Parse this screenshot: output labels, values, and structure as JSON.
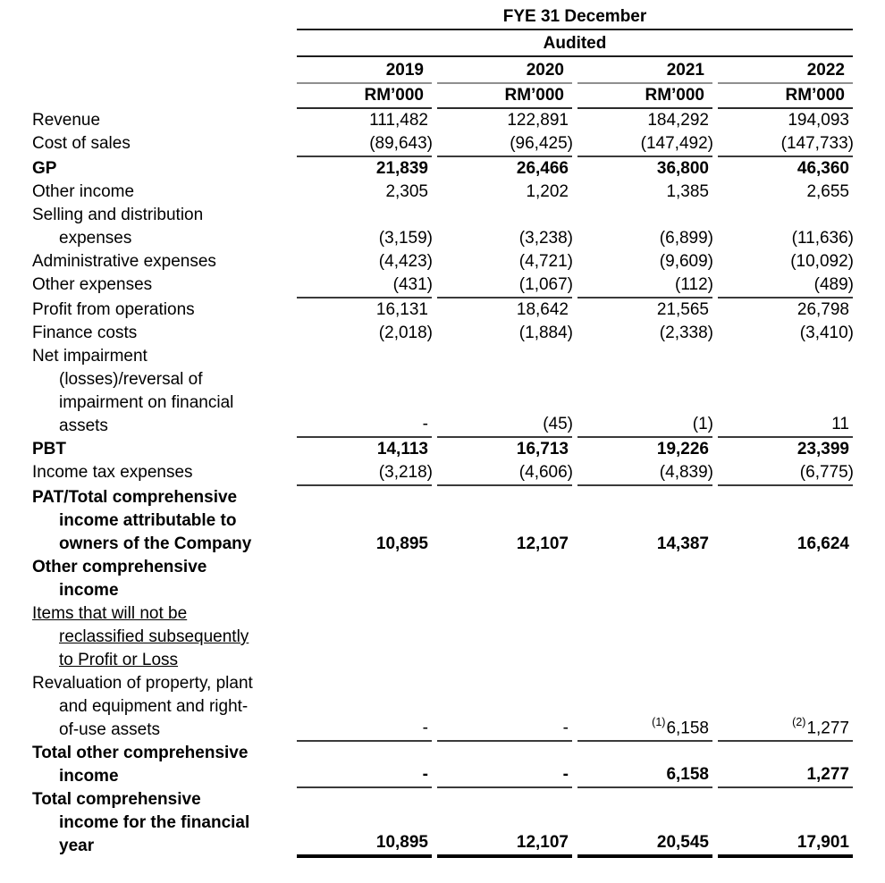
{
  "header": {
    "title": "FYE 31 December",
    "subtitle": "Audited",
    "years": [
      "2019",
      "2020",
      "2021",
      "2022"
    ],
    "unit": "RM’000"
  },
  "table": {
    "rows": [
      {
        "label": "Revenue",
        "values": [
          "111,482",
          "122,891",
          "184,292",
          "194,093"
        ]
      },
      {
        "label": "Cost of sales",
        "values": [
          "(89,643)",
          "(96,425)",
          "(147,492)",
          "(147,733)"
        ],
        "rule_after": true
      },
      {
        "label": "GP",
        "bold": true,
        "values": [
          "21,839",
          "26,466",
          "36,800",
          "46,360"
        ]
      },
      {
        "label": "Other income",
        "values": [
          "2,305",
          "1,202",
          "1,385",
          "2,655"
        ]
      },
      {
        "label": "Selling and distribution\nexpenses",
        "values": [
          "(3,159)",
          "(3,238)",
          "(6,899)",
          "(11,636)"
        ]
      },
      {
        "label": "Administrative expenses",
        "values": [
          "(4,423)",
          "(4,721)",
          "(9,609)",
          "(10,092)"
        ]
      },
      {
        "label": "Other expenses",
        "values": [
          "(431)",
          "(1,067)",
          "(112)",
          "(489)"
        ],
        "rule_after": true
      },
      {
        "label": "Profit from operations",
        "values": [
          "16,131",
          "18,642",
          "21,565",
          "26,798"
        ]
      },
      {
        "label": "Finance costs",
        "values": [
          "(2,018)",
          "(1,884)",
          "(2,338)",
          "(3,410)"
        ]
      },
      {
        "label": "Net impairment\n(losses)/reversal of\nimpairment on financial\nassets",
        "values": [
          "-",
          "(45)",
          "(1)",
          "11"
        ],
        "rule_after": true
      },
      {
        "label": "PBT",
        "bold": true,
        "values": [
          "14,113",
          "16,713",
          "19,226",
          "23,399"
        ]
      },
      {
        "label": "Income tax expenses",
        "values": [
          "(3,218)",
          "(4,606)",
          "(4,839)",
          "(6,775)"
        ],
        "rule_after": true
      },
      {
        "label": "PAT/Total comprehensive\nincome attributable to\nowners of the Company",
        "bold": true,
        "values": [
          "10,895",
          "12,107",
          "14,387",
          "16,624"
        ]
      },
      {
        "label": "Other comprehensive\nincome",
        "bold": true,
        "values": [
          "",
          "",
          "",
          ""
        ]
      },
      {
        "label": "Items that will not be\nreclassified subsequently\nto Profit or Loss",
        "underline": true,
        "values": [
          "",
          "",
          "",
          ""
        ]
      },
      {
        "label": "Revaluation of property, plant\nand equipment and right-\nof-use assets",
        "values": [
          "-",
          "-",
          "6,158",
          "1,277"
        ],
        "notes": [
          "",
          "",
          "(1)",
          "(2)"
        ],
        "rule_after": true
      },
      {
        "label": "Total other comprehensive\nincome",
        "bold": true,
        "values": [
          "-",
          "-",
          "6,158",
          "1,277"
        ],
        "rule_after": true
      },
      {
        "label": "Total comprehensive\nincome for the financial\nyear",
        "bold": true,
        "values": [
          "10,895",
          "12,107",
          "20,545",
          "17,901"
        ],
        "thick_rule_after": true
      }
    ]
  }
}
